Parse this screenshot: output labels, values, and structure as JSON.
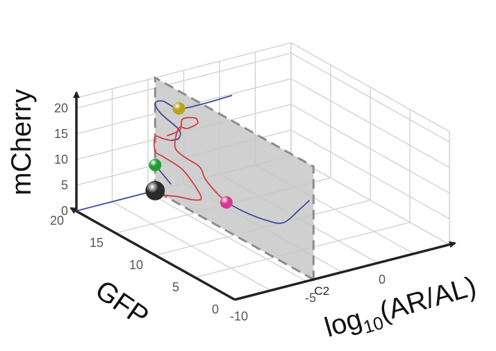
{
  "chart_data": {
    "type": "line",
    "projection": "3d",
    "axes": {
      "x": {
        "label_base": "log",
        "label_sub": "10",
        "label_rest": "(AR/AL)",
        "range": [
          -10,
          5
        ],
        "ticks": [
          -10,
          -5,
          0
        ]
      },
      "y": {
        "label": "GFP",
        "range": [
          0,
          20
        ],
        "ticks": [
          0,
          5,
          10,
          15,
          20
        ]
      },
      "z": {
        "label": "mCherry",
        "range": [
          0,
          22
        ],
        "ticks": [
          0,
          5,
          10,
          15,
          20
        ]
      }
    },
    "grid": true,
    "colors": {
      "stable": "#3a4a9a",
      "unstable": "#d63a3a",
      "plane": "#c8c8c8"
    },
    "plane": {
      "x": -4.5,
      "label": "C2"
    },
    "series": [
      {
        "style": "stable",
        "points": [
          [
            -10,
            20,
            0
          ],
          [
            -6,
            20,
            0
          ],
          [
            -5,
            20,
            0
          ]
        ]
      },
      {
        "style": "stable",
        "points": [
          [
            -4.5,
            0.5,
            15
          ],
          [
            -3.5,
            3.5,
            10
          ],
          [
            -3.3,
            6,
            5
          ],
          [
            -3.5,
            8,
            4
          ],
          [
            -4,
            9.5,
            4.5
          ],
          [
            -4.5,
            11,
            5.5
          ]
        ]
      },
      {
        "style": "stable",
        "points": [
          [
            -4.5,
            20,
            5
          ],
          [
            -4.5,
            18,
            3
          ]
        ]
      },
      {
        "style": "stable",
        "points": [
          [
            -4.5,
            18,
            11.5
          ],
          [
            -4.5,
            17,
            12.8
          ],
          [
            -4.5,
            17,
            14.5
          ],
          [
            -4.5,
            19.2,
            15.6
          ],
          [
            -4.5,
            20,
            17
          ],
          [
            -4.5,
            19,
            18.3
          ],
          [
            -4.5,
            17,
            18.6
          ],
          [
            -3,
            16.6,
            18.8
          ],
          [
            -1,
            16.6,
            19
          ]
        ]
      },
      {
        "style": "unstable",
        "points": [
          [
            -5,
            20,
            0
          ],
          [
            -4.6,
            18.3,
            0.6
          ],
          [
            -4.5,
            17,
            1.4
          ],
          [
            -4.5,
            15,
            2.5
          ],
          [
            -4.6,
            14,
            4
          ],
          [
            -4.5,
            15.5,
            6
          ],
          [
            -4.4,
            17,
            7
          ],
          [
            -4.5,
            19,
            7.5
          ],
          [
            -4.5,
            20,
            7.7
          ],
          [
            -4.5,
            20,
            10.5
          ],
          [
            -4.5,
            19,
            11
          ],
          [
            -4.5,
            18,
            11.5
          ]
        ]
      },
      {
        "style": "unstable",
        "points": [
          [
            -4.5,
            11,
            5.5
          ],
          [
            -4.5,
            12.5,
            6.5
          ],
          [
            -4.6,
            13.5,
            8
          ],
          [
            -4.5,
            14.4,
            9.5
          ],
          [
            -4.5,
            16.5,
            9.8
          ],
          [
            -4.5,
            17.5,
            10.8
          ],
          [
            -4.5,
            17,
            14.8
          ],
          [
            -4.6,
            15.8,
            15.8
          ],
          [
            -4.5,
            14.8,
            17.4
          ],
          [
            -4.5,
            14.6,
            18.1
          ],
          [
            -4.5,
            15,
            18.5
          ],
          [
            -4.8,
            16,
            17.6
          ],
          [
            -4.7,
            16.5,
            15
          ],
          [
            -4.5,
            18.5,
            12
          ]
        ]
      }
    ],
    "markers": [
      {
        "point": [
          -4.5,
          20,
          0
        ],
        "color": "#2b2b2b",
        "size": 14
      },
      {
        "point": [
          -4.5,
          20,
          5
        ],
        "color": "#1f9e2f",
        "size": 9
      },
      {
        "point": [
          -4.5,
          11,
          5.5
        ],
        "color": "#d6398e",
        "size": 9
      },
      {
        "point": [
          -4.5,
          17,
          18.6
        ],
        "color": "#b5a418",
        "size": 9
      }
    ]
  }
}
